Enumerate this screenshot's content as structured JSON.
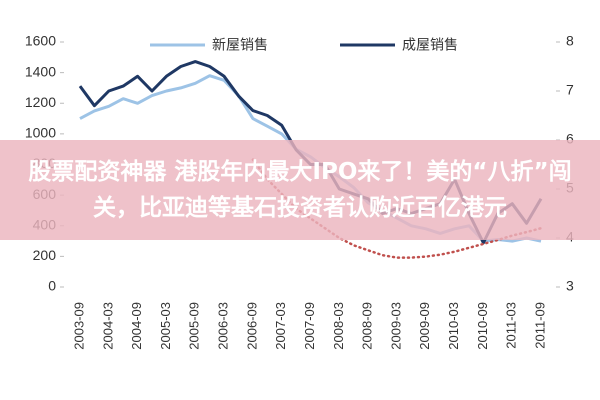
{
  "chart_data": {
    "type": "line",
    "categories": [
      "2003-09",
      null,
      "2004-03",
      null,
      "2004-09",
      null,
      "2005-03",
      null,
      "2005-09",
      null,
      "2006-03",
      null,
      "2006-09",
      null,
      "2007-03",
      null,
      "2007-09",
      null,
      "2008-03",
      null,
      "2008-09",
      null,
      "2009-03",
      null,
      "2009-09",
      null,
      "2010-03",
      null,
      "2010-09",
      null,
      "2011-03",
      null,
      "2011-09"
    ],
    "series": [
      {
        "name": "新屋销售",
        "color": "#9dc3e6",
        "values": [
          1100,
          1150,
          1180,
          1230,
          1200,
          1250,
          1280,
          1300,
          1330,
          1380,
          1350,
          1250,
          1100,
          1050,
          1000,
          900,
          850,
          780,
          720,
          650,
          550,
          500,
          450,
          400,
          380,
          350,
          380,
          400,
          300,
          310,
          300,
          320,
          300
        ]
      },
      {
        "name": "成屋销售",
        "color": "#1f3864",
        "axis": "y2",
        "values": [
          7.1,
          6.7,
          7.0,
          7.1,
          7.3,
          7.0,
          7.3,
          7.5,
          7.6,
          7.5,
          7.3,
          6.9,
          6.6,
          6.5,
          6.3,
          5.8,
          5.5,
          5.5,
          5.0,
          4.9,
          4.8,
          4.5,
          4.6,
          4.5,
          4.6,
          4.7,
          5.2,
          4.5,
          3.9,
          4.5,
          4.7,
          4.3,
          4.8
        ]
      },
      {
        "color": "#c0504d",
        "axis": "y2",
        "dashed": true,
        "values": [
          null,
          null,
          null,
          null,
          null,
          null,
          null,
          null,
          null,
          null,
          null,
          null,
          5.6,
          5.2,
          4.9,
          4.6,
          4.4,
          4.2,
          4.0,
          3.85,
          3.75,
          3.65,
          3.6,
          3.6,
          3.62,
          3.66,
          3.72,
          3.8,
          3.88,
          3.96,
          4.05,
          4.12,
          4.2
        ]
      }
    ],
    "ylim": [
      0,
      1600
    ],
    "yticks": [
      0,
      200,
      400,
      600,
      800,
      1000,
      1200,
      1400,
      1600
    ],
    "y2lim": [
      3,
      8
    ],
    "y2ticks": [
      3,
      4,
      5,
      6,
      7,
      8
    ],
    "grid": false
  },
  "banner": {
    "text": "股票配资神器 港股年内最大IPO来了！美的“八折”闯关，比亚迪等基石投资者认购近百亿港元"
  }
}
